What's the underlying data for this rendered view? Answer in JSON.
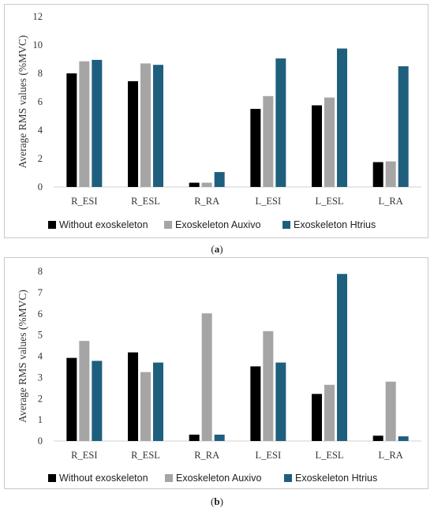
{
  "colors": {
    "without": "#000000",
    "auxivo": "#a5a5a5",
    "htrius": "#1f5f7e",
    "axis": "#d0d0d0"
  },
  "captions": {
    "a": "a",
    "b": "b"
  },
  "chart_data": [
    {
      "type": "bar",
      "title": "",
      "xlabel": "",
      "ylabel": "Average RMS values (%MVC)",
      "categories": [
        "R_ESI",
        "R_ESL",
        "R_RA",
        "L_ESI",
        "L_ESL",
        "L_RA"
      ],
      "ylim": [
        0,
        12
      ],
      "yticks": [
        0,
        2,
        4,
        6,
        8,
        10,
        12
      ],
      "grid": false,
      "legend_position": "bottom",
      "series": [
        {
          "name": "Without exoskeleton",
          "values": [
            8.0,
            7.45,
            0.3,
            5.5,
            5.75,
            1.75
          ]
        },
        {
          "name": "Exoskeleton Auxivo",
          "values": [
            8.85,
            8.7,
            0.3,
            6.4,
            6.3,
            1.8
          ]
        },
        {
          "name": "Exoskeleton Htrius",
          "values": [
            8.95,
            8.6,
            1.05,
            9.05,
            9.75,
            8.5
          ]
        }
      ]
    },
    {
      "type": "bar",
      "title": "",
      "xlabel": "",
      "ylabel": "Average RMS values (%MVC)",
      "categories": [
        "R_ESI",
        "R_ESL",
        "R_RA",
        "L_ESI",
        "L_ESL",
        "L_RA"
      ],
      "ylim": [
        0,
        8
      ],
      "yticks": [
        0,
        1,
        2,
        3,
        4,
        5,
        6,
        7,
        8
      ],
      "grid": false,
      "legend_position": "bottom",
      "series": [
        {
          "name": "Without exoskeleton",
          "values": [
            3.92,
            4.18,
            0.3,
            3.52,
            2.22,
            0.25
          ]
        },
        {
          "name": "Exoskeleton Auxivo",
          "values": [
            4.72,
            3.25,
            6.02,
            5.18,
            2.65,
            2.8
          ]
        },
        {
          "name": "Exoskeleton Htrius",
          "values": [
            3.78,
            3.7,
            0.3,
            3.7,
            7.88,
            0.22
          ]
        }
      ]
    }
  ]
}
